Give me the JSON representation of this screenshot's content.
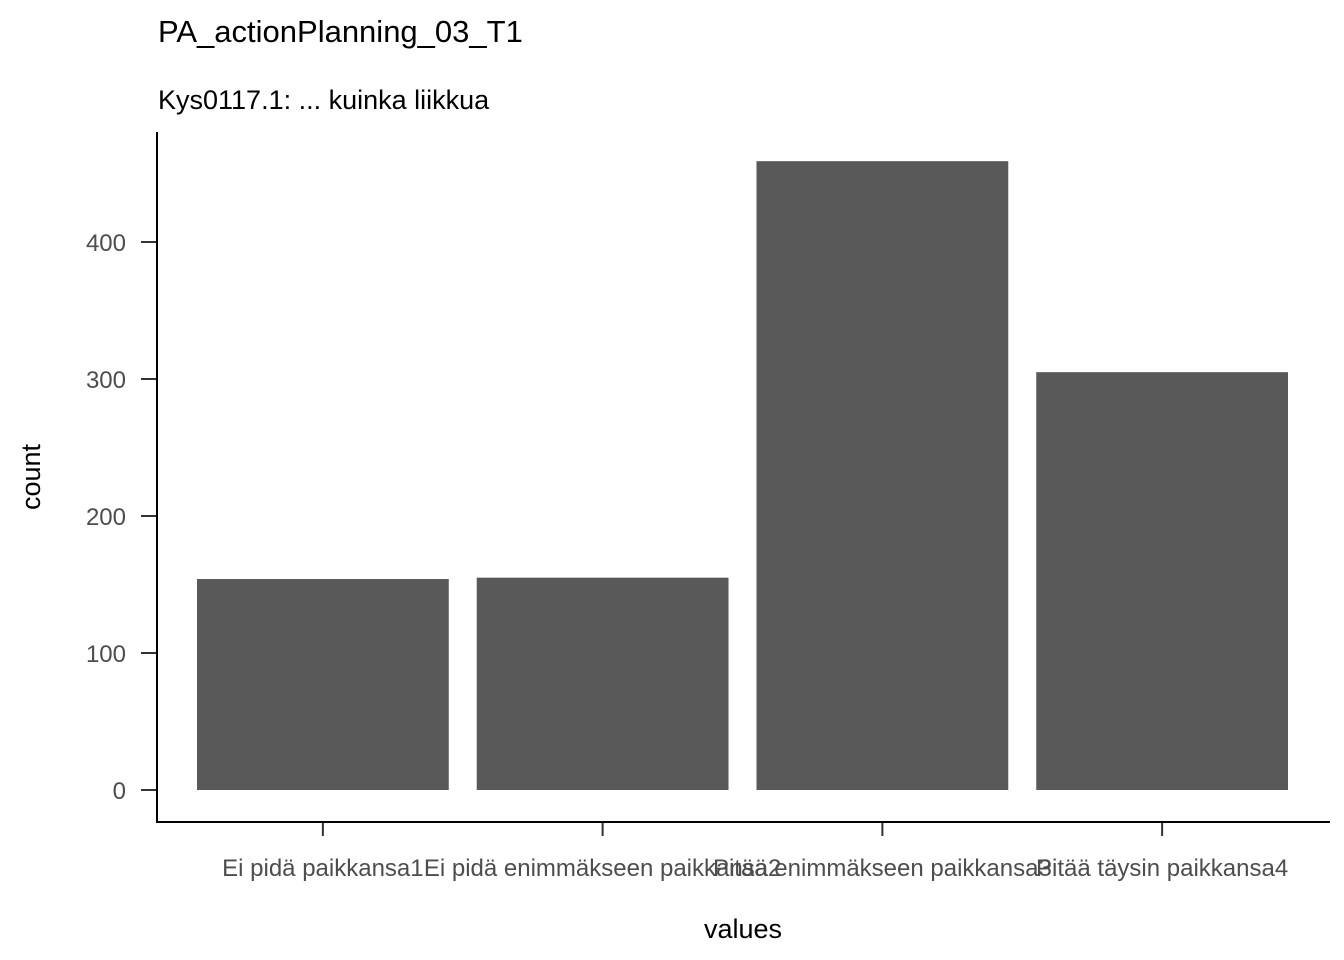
{
  "chart_data": {
    "type": "bar",
    "title": "PA_actionPlanning_03_T1",
    "subtitle": "Kys0117.1: ... kuinka liikkua",
    "xlabel": "values",
    "ylabel": "count",
    "categories": [
      "Ei pidä paikkansa1",
      "Ei pidä enimmäkseen paikkansa2",
      "Pitää enimmäkseen paikkansa3",
      "Pitää täysin paikkansa4"
    ],
    "values": [
      154,
      155,
      459,
      305
    ],
    "ylim": [
      0,
      480
    ],
    "yticks": [
      0,
      100,
      200,
      300,
      400
    ],
    "bar_color": "#595959",
    "grid": false,
    "legend": "none"
  }
}
